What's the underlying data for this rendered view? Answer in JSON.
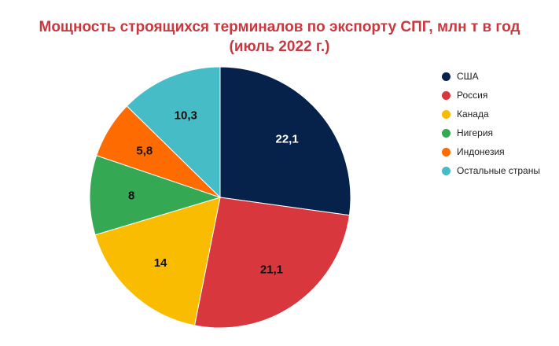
{
  "chart_data": {
    "type": "pie",
    "title_line1": "Мощность строящихся терминалов по экспорту СПГ, млн т в год",
    "title_line2": "(июль 2022 г.)",
    "legend_position": "right",
    "slices": [
      {
        "label": "США",
        "value": 22.1,
        "value_label": "22,1",
        "color": "#06214a"
      },
      {
        "label": "Россия",
        "value": 21.1,
        "value_label": "21,1",
        "color": "#d8373e"
      },
      {
        "label": "Канада",
        "value": 14,
        "value_label": "14",
        "color": "#f9bc00"
      },
      {
        "label": "Нигерия",
        "value": 8,
        "value_label": "8",
        "color": "#35a853"
      },
      {
        "label": "Индонезия",
        "value": 5.8,
        "value_label": "5,8",
        "color": "#fe6b01"
      },
      {
        "label": "Остальные страны",
        "value": 10.3,
        "value_label": "10,3",
        "color": "#46bdc6"
      }
    ]
  }
}
